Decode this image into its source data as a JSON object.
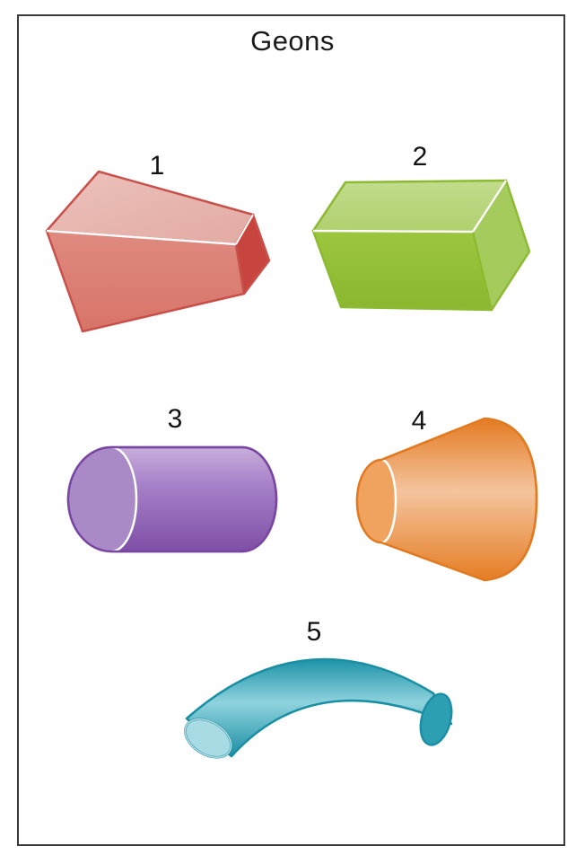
{
  "title": "Geons",
  "geons": [
    {
      "number": "1",
      "icon": "truncated-wedge-icon",
      "color": "#d9776e"
    },
    {
      "number": "2",
      "icon": "rectangular-block-icon",
      "color": "#8fba35"
    },
    {
      "number": "3",
      "icon": "cylinder-icon",
      "color": "#9467b8"
    },
    {
      "number": "4",
      "icon": "truncated-cone-icon",
      "color": "#e8893a"
    },
    {
      "number": "5",
      "icon": "curved-tube-icon",
      "color": "#2aa4b8"
    }
  ]
}
